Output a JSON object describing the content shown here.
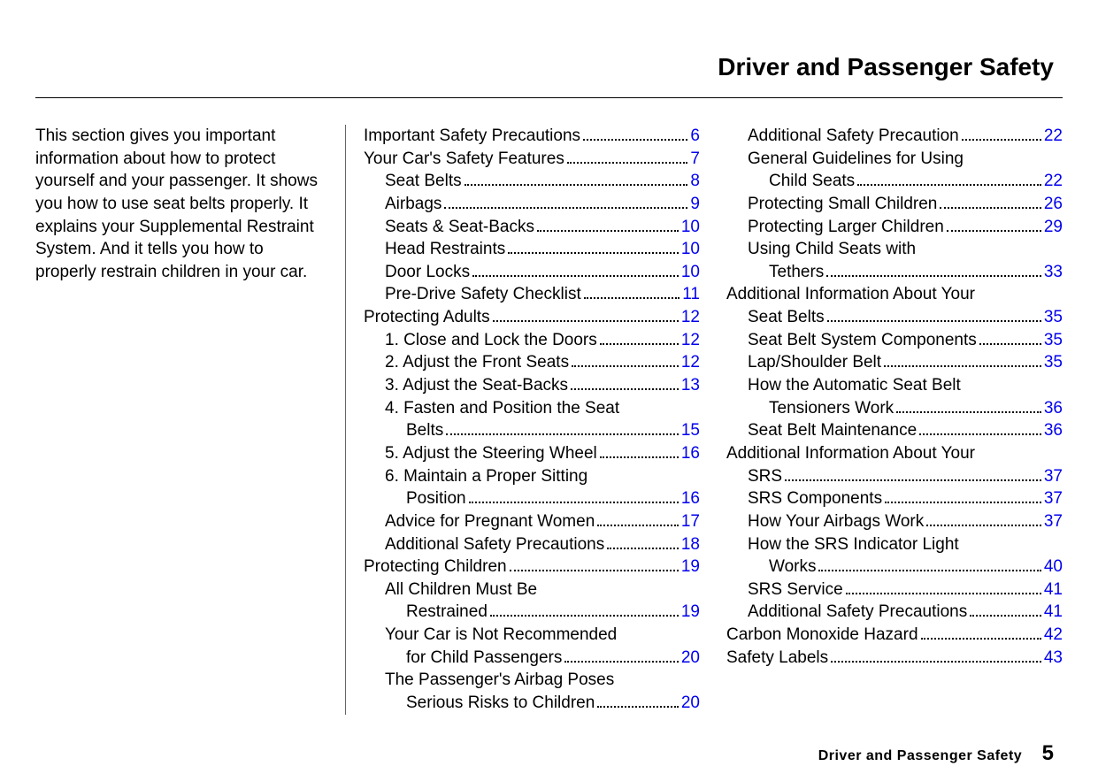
{
  "header": {
    "title": "Driver and Passenger Safety"
  },
  "intro": "This section gives you important information about how to protect yourself and your passenger. It shows you how to use seat belts properly. It explains your Supplemental Restraint System. And it tells you how to properly restrain children in your car.",
  "footer": {
    "section": "Driver and Passenger Safety",
    "page": "5"
  },
  "style": {
    "background": "#ffffff",
    "text_color": "#000000",
    "link_color": "#0000ee",
    "rule_color": "#000000",
    "body_fontsize": 19,
    "title_fontsize": 28
  },
  "toc": {
    "col1": [
      {
        "label": "Important Safety Precautions",
        "page": "6",
        "indent": 0
      },
      {
        "label": "Your Car's Safety Features",
        "page": "7",
        "indent": 0
      },
      {
        "label": "Seat Belts",
        "page": "8",
        "indent": 1
      },
      {
        "label": "Airbags",
        "page": "9",
        "indent": 1
      },
      {
        "label": "Seats & Seat-Backs",
        "page": "10",
        "indent": 1
      },
      {
        "label": "Head Restraints",
        "page": "10",
        "indent": 1
      },
      {
        "label": "Door Locks",
        "page": "10",
        "indent": 1
      },
      {
        "label": "Pre-Drive Safety Checklist",
        "page": "11",
        "indent": 1
      },
      {
        "label": "Protecting Adults",
        "page": "12",
        "indent": 0
      },
      {
        "label": "1. Close and Lock the Doors",
        "page": "12",
        "indent": 1
      },
      {
        "label": "2. Adjust the Front Seats",
        "page": "12",
        "indent": 1
      },
      {
        "label": "3. Adjust the Seat-Backs",
        "page": "13",
        "indent": 1
      },
      {
        "label": "4. Fasten and Position the Seat",
        "cont": "Belts",
        "page": "15",
        "indent": 1
      },
      {
        "label": "5. Adjust the Steering Wheel",
        "page": "16",
        "indent": 1
      },
      {
        "label": "6. Maintain a Proper Sitting",
        "cont": "Position",
        "page": "16",
        "indent": 1
      },
      {
        "label": "Advice for Pregnant Women",
        "page": "17",
        "indent": 1
      },
      {
        "label": "Additional Safety Precautions",
        "page": "18",
        "indent": 1
      },
      {
        "label": "Protecting Children",
        "page": "19",
        "indent": 0
      },
      {
        "label": "All Children Must Be",
        "cont": "Restrained",
        "page": "19",
        "indent": 1
      },
      {
        "label": "Your Car is Not Recommended",
        "cont": "for Child Passengers",
        "page": "20",
        "indent": 1
      },
      {
        "label": "The Passenger's Airbag Poses",
        "cont": "Serious Risks to Children",
        "page": "20",
        "indent": 1
      }
    ],
    "col2": [
      {
        "label": "Additional Safety Precaution",
        "page": "22",
        "indent": 1
      },
      {
        "label": "General Guidelines for Using",
        "cont": "Child Seats",
        "page": "22",
        "indent": 1
      },
      {
        "label": "Protecting Small Children",
        "page": "26",
        "indent": 1
      },
      {
        "label": "Protecting Larger Children",
        "page": "29",
        "indent": 1
      },
      {
        "label": "Using Child Seats with",
        "cont": "Tethers",
        "page": "33",
        "indent": 1
      },
      {
        "label": "Additional Information About Your",
        "cont": "Seat Belts",
        "page": "35",
        "indent": 0
      },
      {
        "label": "Seat Belt System Components",
        "page": "35",
        "indent": 1
      },
      {
        "label": "Lap/Shoulder Belt",
        "page": "35",
        "indent": 1
      },
      {
        "label": "How the Automatic Seat Belt",
        "cont": "Tensioners Work",
        "page": "36",
        "indent": 1
      },
      {
        "label": "Seat Belt Maintenance",
        "page": "36",
        "indent": 1
      },
      {
        "label": "Additional Information About Your",
        "cont": "SRS",
        "page": "37",
        "indent": 0
      },
      {
        "label": "SRS Components",
        "page": "37",
        "indent": 1
      },
      {
        "label": "How Your Airbags Work",
        "page": "37",
        "indent": 1
      },
      {
        "label": "How the SRS Indicator Light",
        "cont": "Works",
        "page": "40",
        "indent": 1
      },
      {
        "label": "SRS Service",
        "page": "41",
        "indent": 1
      },
      {
        "label": "Additional Safety Precautions",
        "page": "41",
        "indent": 1
      },
      {
        "label": "Carbon Monoxide Hazard",
        "page": "42",
        "indent": 0
      },
      {
        "label": "Safety Labels",
        "page": "43",
        "indent": 0
      }
    ]
  }
}
